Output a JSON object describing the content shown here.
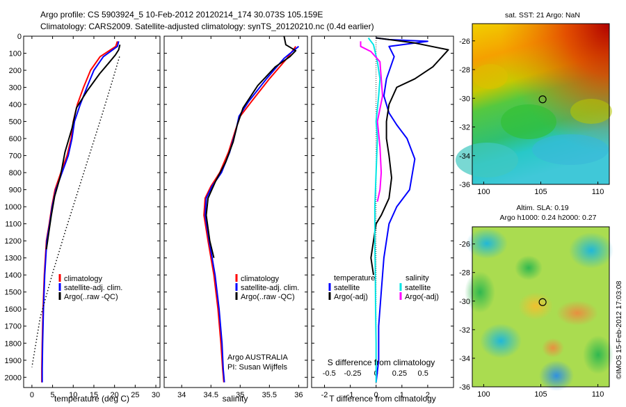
{
  "header": {
    "line1": "Argo profile: CS 5903924_5 10-Feb-2012 20120214_174 30.073S 105.159E",
    "line2": "Climatology: CARS2009. Satellite-adjusted climatology: synTS_20120210.nc (0.4d earlier)"
  },
  "colors": {
    "climatology": "#ff0000",
    "satellite": "#0000ff",
    "argo": "#000000",
    "satellite_s": "#00e5e5",
    "argo_s": "#ff00ff"
  },
  "chart_data": [
    {
      "type": "line",
      "xlabel": "temperature (deg C)",
      "ylabel": "",
      "xlim": [
        -2,
        31
      ],
      "ylim": [
        2060,
        0
      ],
      "xticks": [
        "0",
        "5",
        "10",
        "15",
        "20",
        "25",
        "30"
      ],
      "xtick_values": [
        0,
        5,
        10,
        15,
        20,
        25,
        30
      ],
      "yticks": [
        "0",
        "100",
        "200",
        "300",
        "400",
        "500",
        "600",
        "700",
        "800",
        "900",
        "1000",
        "1100",
        "1200",
        "1300",
        "1400",
        "1500",
        "1600",
        "1700",
        "1800",
        "1900",
        "2000"
      ],
      "ytick_values": [
        0,
        100,
        200,
        300,
        400,
        500,
        600,
        700,
        800,
        900,
        1000,
        1100,
        1200,
        1300,
        1400,
        1500,
        1600,
        1700,
        1800,
        1900,
        2000
      ],
      "legend": [
        "climatology",
        "satellite-adj. clim.",
        "Argo(..raw -QC)"
      ],
      "series": [
        {
          "name": "climatology",
          "color": "#ff0000",
          "x": [
            20.7,
            20.3,
            16.5,
            14.2,
            12.5,
            11.0,
            10.0,
            9.5,
            8.5,
            7.0,
            5.6,
            4.8,
            4.2,
            3.5,
            3.0,
            2.7,
            2.5,
            2.4,
            2.4
          ],
          "y": [
            30,
            60,
            120,
            200,
            300,
            400,
            500,
            600,
            700,
            800,
            900,
            1000,
            1100,
            1200,
            1400,
            1600,
            1800,
            1950,
            2030
          ]
        },
        {
          "name": "satellite-adj. clim.",
          "color": "#0000ff",
          "x": [
            21.0,
            20.7,
            17.3,
            15.0,
            13.3,
            11.7,
            10.3,
            9.7,
            8.8,
            7.3,
            5.8,
            4.9,
            4.3,
            3.6,
            3.1,
            2.8,
            2.6,
            2.5,
            2.5
          ],
          "y": [
            30,
            60,
            120,
            200,
            300,
            400,
            500,
            600,
            700,
            800,
            900,
            1000,
            1100,
            1200,
            1400,
            1600,
            1800,
            1950,
            2030
          ]
        },
        {
          "name": "Argo(..raw -QC)",
          "color": "#000000",
          "x": [
            21.3,
            21.0,
            20.2,
            18.5,
            16.4,
            13.4,
            10.8,
            9.7,
            8.0,
            6.9,
            5.5,
            4.7,
            4.1,
            3.5
          ],
          "y": [
            50,
            80,
            110,
            160,
            220,
            320,
            420,
            540,
            680,
            820,
            940,
            1050,
            1150,
            1250
          ]
        },
        {
          "name": "",
          "color": "#000000",
          "dashed": true,
          "x": [
            21.2,
            19.5,
            17.0,
            14.0,
            11.0,
            8.0,
            5.0,
            2.0,
            0.0
          ],
          "y": [
            120,
            260,
            460,
            690,
            920,
            1150,
            1390,
            1650,
            1940
          ]
        }
      ]
    },
    {
      "type": "line",
      "xlabel": "salinity",
      "ylabel": "",
      "xlim": [
        33.7,
        36.15
      ],
      "ylim": [
        2060,
        0
      ],
      "xticks": [
        "34",
        "34.5",
        "35",
        "35.5",
        "36"
      ],
      "xtick_values": [
        34,
        34.5,
        35,
        35.5,
        36
      ],
      "legend": [
        "climatology",
        "satellite-adj. clim.",
        "Argo(..raw -QC)"
      ],
      "annotation": [
        "Argo AUSTRALIA",
        "PI: Susan Wijffels"
      ],
      "series": [
        {
          "name": "climatology",
          "color": "#ff0000",
          "x": [
            35.95,
            35.8,
            35.5,
            35.2,
            35.0,
            34.92,
            34.8,
            34.65,
            34.5,
            34.4,
            34.38,
            34.45,
            34.55,
            34.62,
            34.67,
            34.7,
            34.72
          ],
          "y": [
            60,
            130,
            250,
            380,
            470,
            550,
            680,
            800,
            880,
            950,
            1050,
            1200,
            1400,
            1600,
            1800,
            1950,
            2030
          ]
        },
        {
          "name": "satellite-adj. clim.",
          "color": "#0000ff",
          "x": [
            36.0,
            35.75,
            35.45,
            35.15,
            34.98,
            34.93,
            34.82,
            34.68,
            34.52,
            34.42,
            34.4,
            34.47,
            34.57,
            34.64,
            34.69,
            34.71,
            34.73
          ],
          "y": [
            60,
            130,
            250,
            380,
            470,
            550,
            680,
            800,
            880,
            950,
            1050,
            1200,
            1400,
            1600,
            1800,
            1950,
            2030
          ]
        },
        {
          "name": "Argo(..raw -QC)",
          "color": "#000000",
          "x": [
            35.75,
            35.78,
            35.95,
            35.85,
            35.6,
            35.3,
            35.05,
            34.95,
            34.88,
            34.75,
            34.58,
            34.45,
            34.42,
            34.48,
            34.55
          ],
          "y": [
            0,
            50,
            85,
            120,
            180,
            290,
            420,
            520,
            620,
            740,
            850,
            950,
            1050,
            1200,
            1300
          ]
        }
      ]
    },
    {
      "type": "line",
      "xlabel": "T difference from climatology",
      "title_bottom": "S difference from climatology",
      "xlim": [
        -2.5,
        3
      ],
      "ylim": [
        2060,
        0
      ],
      "xticks": [
        "-2",
        "-1",
        "0",
        "1",
        "2"
      ],
      "xtick_values": [
        -2,
        -1,
        0,
        1,
        2
      ],
      "top_ticks": [
        "-0.5",
        "-0.25",
        "0",
        "0.25",
        "0.5"
      ],
      "top_tick_values": [
        -0.5,
        -0.25,
        0,
        0.25,
        0.5
      ],
      "legend_temperature": {
        "title": "temperature",
        "items": [
          "satellite",
          "Argo(-adj)"
        ]
      },
      "legend_salinity": {
        "title": "salinity",
        "items": [
          "satellite",
          "Argo(-adj)"
        ]
      },
      "series": [
        {
          "name": "satellite",
          "color": "#0000ff",
          "x": [
            0.0,
            0.5,
            2.0,
            0.5,
            0.7,
            0.4,
            0.3,
            0.5,
            0.8,
            1.2,
            1.5,
            1.3,
            0.8,
            0.5,
            0.3,
            0.2,
            0.1,
            0.1,
            0.0
          ],
          "y": [
            10,
            20,
            30,
            60,
            120,
            250,
            350,
            450,
            520,
            600,
            720,
            900,
            1000,
            1100,
            1300,
            1500,
            1700,
            1900,
            2030
          ]
        },
        {
          "name": "Argo(-adj)",
          "color": "#000000",
          "x": [
            0.0,
            0.5,
            1.5,
            2.8,
            2.2,
            1.5,
            0.8,
            0.5,
            0.4,
            0.4,
            0.5,
            0.6,
            0.5,
            0.2,
            0.0,
            -0.1,
            -0.2,
            -0.1
          ],
          "y": [
            10,
            20,
            40,
            80,
            180,
            250,
            300,
            400,
            500,
            600,
            700,
            830,
            950,
            1050,
            1100,
            1200,
            1300,
            1400
          ]
        },
        {
          "name": "satellite",
          "color": "#00e5e5",
          "x": [
            -0.3,
            -0.1,
            0.05,
            0.15,
            0.1,
            0.0,
            0.05,
            0.0,
            -0.05,
            -0.05,
            -0.03,
            -0.02,
            0.0,
            0.0
          ],
          "y": [
            10,
            50,
            150,
            250,
            350,
            500,
            600,
            800,
            1000,
            1200,
            1400,
            1600,
            1800,
            2030
          ]
        },
        {
          "name": "Argo(-adj)",
          "color": "#ff00ff",
          "x": [
            -0.6,
            -0.6,
            -0.2,
            0.15,
            0.2,
            0.25,
            0.05,
            0.15,
            0.2,
            0.15,
            0.05
          ],
          "y": [
            30,
            60,
            90,
            150,
            250,
            350,
            500,
            650,
            800,
            900,
            970
          ]
        }
      ]
    }
  ],
  "maps": [
    {
      "title": "sat. SST: 21 Argo: NaN",
      "xticks": [
        "100",
        "105",
        "110"
      ],
      "xtick_values": [
        100,
        105,
        110
      ],
      "yticks": [
        "-26",
        "-28",
        "-30",
        "-32",
        "-34",
        "-36"
      ],
      "ytick_values": [
        -26,
        -28,
        -30,
        -32,
        -34,
        -36
      ],
      "xlim": [
        99,
        111
      ],
      "ylim": [
        -36,
        -24.8
      ],
      "marker": {
        "lon": 105.159,
        "lat": -30.073
      }
    },
    {
      "title_line1": "Altim. SLA: 0.19",
      "title_line2": "Argo h1000: 0.24 h2000: 0.27",
      "xticks": [
        "100",
        "105",
        "110"
      ],
      "xtick_values": [
        100,
        105,
        110
      ],
      "yticks": [
        "-26",
        "-28",
        "-30",
        "-32",
        "-34",
        "-36"
      ],
      "ytick_values": [
        -26,
        -28,
        -30,
        -32,
        -34,
        -36
      ],
      "xlim": [
        99,
        111
      ],
      "ylim": [
        -36,
        -24.8
      ],
      "marker": {
        "lon": 105.159,
        "lat": -30.073
      }
    }
  ],
  "credit": "©IMOS 15-Feb-2012 17:03:08"
}
